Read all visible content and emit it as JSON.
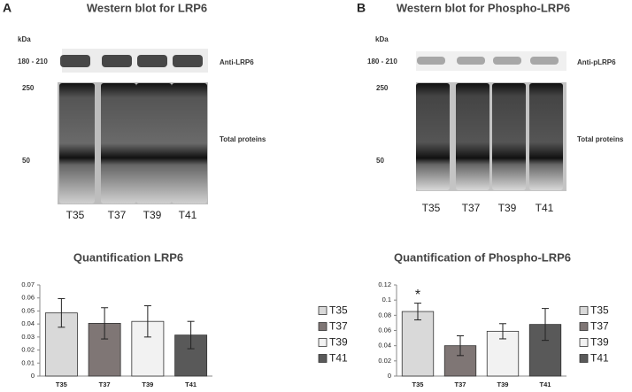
{
  "panels": [
    {
      "label": "A",
      "title": "Western blot for LRP6",
      "unit": "kDa",
      "markers": [
        "180 - 210",
        "250",
        "50"
      ],
      "antibody": "Anti-LRP6",
      "total": "Total proteins",
      "lanes": [
        "T35",
        "T37",
        "T39",
        "T41"
      ]
    },
    {
      "label": "B",
      "title": "Western blot for Phospho-LRP6",
      "unit": "kDa",
      "markers": [
        "180 - 210",
        "250",
        "50"
      ],
      "antibody": "Anti-pLRP6",
      "total": "Total proteins",
      "lanes": [
        "T35",
        "T37",
        "T39",
        "T41"
      ]
    }
  ],
  "chart_data": [
    {
      "type": "bar",
      "title": "Quantification LRP6",
      "categories": [
        "T35",
        "T37",
        "T39",
        "T41"
      ],
      "values": [
        0.0485,
        0.0405,
        0.042,
        0.0315
      ],
      "errors": [
        0.011,
        0.012,
        0.012,
        0.0105
      ],
      "colors": [
        "#d9d9d9",
        "#7f7675",
        "#f2f2f2",
        "#595959"
      ],
      "ylim": [
        0,
        0.07
      ],
      "yticks": [
        0,
        0.01,
        0.02,
        0.03,
        0.04,
        0.05,
        0.06,
        0.07
      ],
      "legend": "right"
    },
    {
      "type": "bar",
      "title": "Quantification of Phospho-LRP6",
      "categories": [
        "T35",
        "T37",
        "T39",
        "T41"
      ],
      "values": [
        0.085,
        0.04,
        0.059,
        0.068
      ],
      "errors": [
        0.011,
        0.013,
        0.01,
        0.021
      ],
      "annotations": [
        "*",
        null,
        null,
        null
      ],
      "colors": [
        "#d9d9d9",
        "#7f7675",
        "#f2f2f2",
        "#595959"
      ],
      "ylim": [
        0,
        0.12
      ],
      "yticks": [
        0,
        0.02,
        0.04,
        0.06,
        0.08,
        0.1,
        0.12
      ],
      "legend": "right"
    }
  ]
}
